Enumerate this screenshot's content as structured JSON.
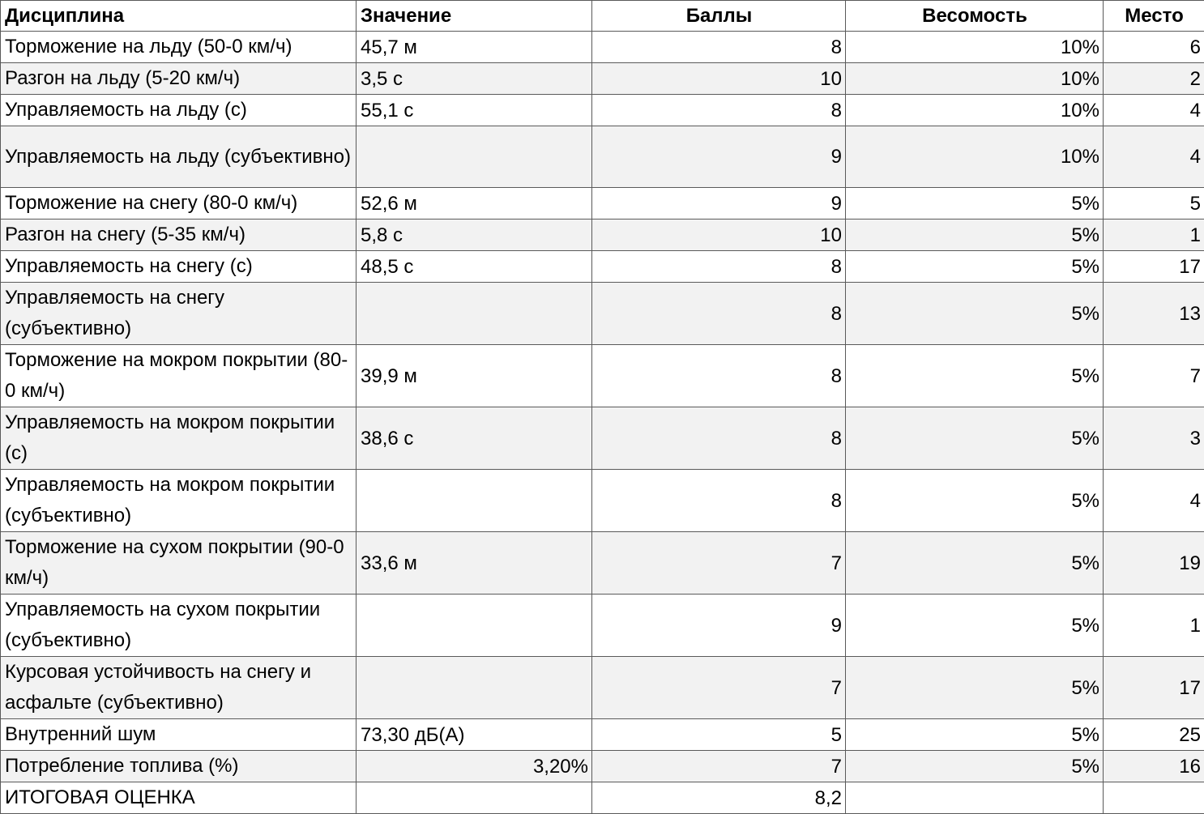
{
  "headers": {
    "discipline": "Дисциплина",
    "value": "Значение",
    "points": "Баллы",
    "weight": "Весомость",
    "place": "Место"
  },
  "rows": [
    {
      "discipline": "Торможение на льду (50-0 км/ч)",
      "value": "45,7 м",
      "points": "8",
      "weight": "10%",
      "place": "6"
    },
    {
      "discipline": "Разгон на льду (5-20 км/ч)",
      "value": "3,5 с",
      "points": "10",
      "weight": "10%",
      "place": "2"
    },
    {
      "discipline": "Управляемость на льду (с)",
      "value": "55,1 с",
      "points": "8",
      "weight": "10%",
      "place": "4"
    },
    {
      "discipline": "Управляемость на льду (субъективно)",
      "value": "",
      "points": "9",
      "weight": "10%",
      "place": "4"
    },
    {
      "discipline": "Торможение на снегу (80-0 км/ч)",
      "value": "52,6 м",
      "points": "9",
      "weight": "5%",
      "place": "5"
    },
    {
      "discipline": "Разгон на снегу (5-35 км/ч)",
      "value": "5,8 с",
      "points": "10",
      "weight": "5%",
      "place": "1"
    },
    {
      "discipline": "Управляемость на снегу (с)",
      "value": "48,5 с",
      "points": "8",
      "weight": "5%",
      "place": "17"
    },
    {
      "discipline": "Управляемость на снегу (субъективно)",
      "value": "",
      "points": "8",
      "weight": "5%",
      "place": "13"
    },
    {
      "discipline": "Торможение на мокром покрытии (80-0 км/ч)",
      "value": "39,9 м",
      "points": "8",
      "weight": "5%",
      "place": "7"
    },
    {
      "discipline": "Управляемость на мокром покрытии (с)",
      "value": "38,6 с",
      "points": "8",
      "weight": "5%",
      "place": "3"
    },
    {
      "discipline": "Управляемость на мокром покрытии (субъективно)",
      "value": "",
      "points": "8",
      "weight": "5%",
      "place": "4"
    },
    {
      "discipline": "Торможение на сухом покрытии (90-0 км/ч)",
      "value": "33,6 м",
      "points": "7",
      "weight": "5%",
      "place": "19"
    },
    {
      "discipline": "Управляемость на сухом покрытии (субъективно)",
      "value": "",
      "points": "9",
      "weight": "5%",
      "place": "1"
    },
    {
      "discipline": "Курсовая устойчивость на снегу и асфальте (субъективно)",
      "value": "",
      "points": "7",
      "weight": "5%",
      "place": "17"
    },
    {
      "discipline": "Внутренний шум",
      "value": "73,30 дБ(А)",
      "points": "5",
      "weight": "5%",
      "place": "25"
    },
    {
      "discipline": "Потребление топлива (%)",
      "value": "3,20%",
      "points": "7",
      "weight": "5%",
      "place": "16"
    },
    {
      "discipline": "ИТОГОВАЯ ОЦЕНКА",
      "value": "",
      "points": "8,2",
      "weight": "",
      "place": ""
    }
  ]
}
